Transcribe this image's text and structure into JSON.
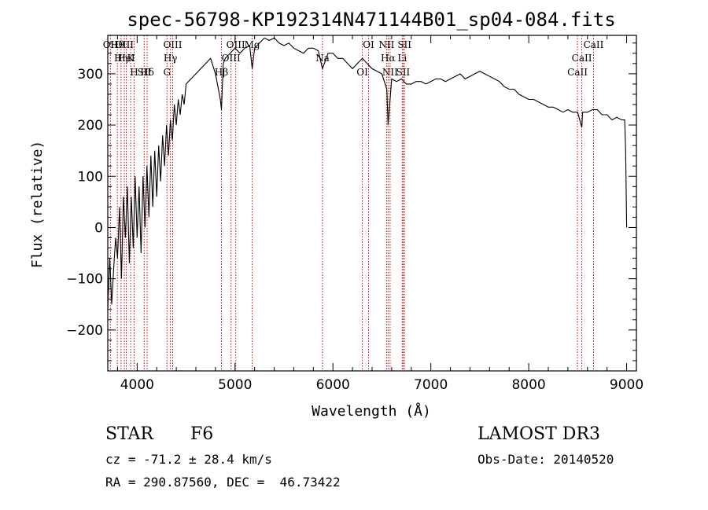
{
  "chart_data": {
    "type": "line",
    "title": "spec-56798-KP192314N471144B01_sp04-084.fits",
    "xlabel": "Wavelength (Å)",
    "ylabel": "Flux (relative)",
    "xlim": [
      3700,
      9100
    ],
    "ylim": [
      -280,
      375
    ],
    "xticks": [
      4000,
      5000,
      6000,
      7000,
      8000,
      9000
    ],
    "yticks": [
      -200,
      -100,
      0,
      100,
      200,
      300
    ],
    "series": [
      {
        "name": "flux",
        "x": [
          3700,
          3720,
          3740,
          3760,
          3780,
          3800,
          3820,
          3840,
          3860,
          3880,
          3900,
          3920,
          3940,
          3960,
          3980,
          4000,
          4020,
          4040,
          4060,
          4080,
          4100,
          4120,
          4140,
          4160,
          4180,
          4200,
          4220,
          4240,
          4260,
          4280,
          4300,
          4320,
          4340,
          4360,
          4380,
          4400,
          4420,
          4440,
          4460,
          4480,
          4500,
          4550,
          4600,
          4650,
          4700,
          4750,
          4800,
          4850,
          4861,
          4880,
          4900,
          4950,
          5000,
          5050,
          5100,
          5150,
          5175,
          5200,
          5250,
          5300,
          5350,
          5400,
          5450,
          5500,
          5550,
          5600,
          5650,
          5700,
          5750,
          5800,
          5850,
          5893,
          5950,
          6000,
          6050,
          6100,
          6150,
          6200,
          6250,
          6300,
          6350,
          6400,
          6450,
          6500,
          6550,
          6563,
          6600,
          6650,
          6700,
          6750,
          6800,
          6850,
          6900,
          6950,
          7000,
          7050,
          7100,
          7150,
          7200,
          7250,
          7300,
          7350,
          7400,
          7450,
          7500,
          7550,
          7600,
          7650,
          7700,
          7750,
          7800,
          7850,
          7900,
          7950,
          8000,
          8050,
          8100,
          8150,
          8200,
          8250,
          8300,
          8350,
          8400,
          8450,
          8500,
          8542,
          8550,
          8600,
          8650,
          8700,
          8750,
          8800,
          8850,
          8900,
          8950,
          8980,
          8990,
          9000
        ],
        "y": [
          -160,
          -60,
          -150,
          -80,
          -20,
          -60,
          40,
          -100,
          60,
          -20,
          80,
          -70,
          60,
          -40,
          100,
          -20,
          80,
          -50,
          100,
          0,
          120,
          20,
          140,
          40,
          150,
          60,
          160,
          90,
          180,
          120,
          200,
          140,
          210,
          170,
          240,
          200,
          250,
          220,
          260,
          240,
          280,
          290,
          300,
          310,
          320,
          330,
          300,
          250,
          230,
          320,
          330,
          340,
          350,
          340,
          350,
          355,
          310,
          350,
          360,
          370,
          365,
          370,
          360,
          355,
          360,
          350,
          345,
          340,
          350,
          350,
          345,
          310,
          340,
          340,
          330,
          330,
          320,
          310,
          320,
          330,
          320,
          310,
          305,
          300,
          270,
          200,
          290,
          285,
          290,
          280,
          280,
          285,
          285,
          280,
          285,
          290,
          290,
          285,
          290,
          295,
          300,
          290,
          295,
          300,
          305,
          300,
          295,
          290,
          285,
          275,
          270,
          270,
          260,
          255,
          250,
          250,
          245,
          240,
          235,
          235,
          230,
          225,
          230,
          225,
          225,
          195,
          225,
          225,
          230,
          230,
          220,
          220,
          210,
          215,
          210,
          210,
          150,
          0
        ]
      }
    ],
    "line_markers": [
      {
        "label": "Hθ",
        "x": 3798
      },
      {
        "label": "K",
        "x": 3934
      },
      {
        "label": "Hδ",
        "x": 4102
      },
      {
        "label": "OII",
        "x": 3727
      },
      {
        "label": "HeI",
        "x": 3889
      },
      {
        "label": "SII",
        "x": 4072
      },
      {
        "label": "OIII",
        "x": 3869
      },
      {
        "label": "Hη",
        "x": 3835
      },
      {
        "label": "H",
        "x": 3969
      },
      {
        "label": "OIII",
        "x": 4363
      },
      {
        "label": "Hγ",
        "x": 4340
      },
      {
        "label": "G",
        "x": 4305
      },
      {
        "label": "OIII",
        "x": 5007
      },
      {
        "label": "OIII",
        "x": 4959
      },
      {
        "label": "Hβ",
        "x": 4861
      },
      {
        "label": "Mg",
        "x": 5175
      },
      {
        "label": "Na",
        "x": 5893
      },
      {
        "label": "OI",
        "x": 6300
      },
      {
        "label": "OI",
        "x": 6364
      },
      {
        "label": "Hα",
        "x": 6563
      },
      {
        "label": "SII",
        "x": 6717
      },
      {
        "label": "NII",
        "x": 6548
      },
      {
        "label": "Li",
        "x": 6708
      },
      {
        "label": "NII",
        "x": 6584
      },
      {
        "label": "SII",
        "x": 6731
      },
      {
        "label": "CaII",
        "x": 8542
      },
      {
        "label": "CaII",
        "x": 8498
      },
      {
        "label": "CaII",
        "x": 8662
      }
    ]
  },
  "info": {
    "object_class": "STAR",
    "subclass": "F6",
    "survey": "LAMOST DR3",
    "redshift": "cz = -71.2 ± 28.4 km/s",
    "obs_date": "Obs-Date: 20140520",
    "coords": "RA = 290.87560, DEC =  46.73422"
  }
}
